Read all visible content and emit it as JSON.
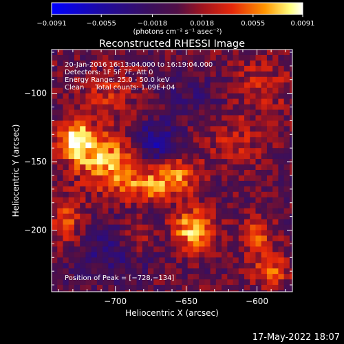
{
  "chart_data": {
    "type": "heatmap",
    "title": "Reconstructed RHESSI Image",
    "xlabel": "Heliocentric X (arcsec)",
    "ylabel": "Heliocentric Y (arcsec)",
    "xlim": [
      -745,
      -575
    ],
    "ylim": [
      -245,
      -68
    ],
    "x_ticks": [
      -700,
      -650,
      -600
    ],
    "x_tick_labels": [
      "−700",
      "−650",
      "−600"
    ],
    "y_ticks": [
      -100,
      -150,
      -200
    ],
    "y_tick_labels": [
      "−100",
      "−150",
      "−200"
    ],
    "colorbar": {
      "range": [
        -0.0091,
        0.0091
      ],
      "ticks": [
        -0.0091,
        -0.0055,
        -0.0018,
        0.0018,
        0.0055,
        0.0091
      ],
      "tick_labels": [
        "−0.0091",
        "−0.0055",
        "−0.0018",
        "0.0018",
        "0.0055",
        "0.0091"
      ],
      "unit_text": "(photons cm⁻² s⁻¹ asec⁻²)"
    },
    "annotations": [
      "20-Jan-2016 16:13:04.000 to 16:19:04.000",
      "Detectors: 1F 5F 7F, Att 0",
      "Energy Range: 25.0 - 50.0 keV",
      "Clean     Total counts: 1.09E+04"
    ],
    "peak_label": "Position of Peak = [−728,−134]",
    "peak_position": [
      -728,
      -134
    ],
    "pixel_size_arcsec": 4,
    "sources": [
      {
        "x": -728,
        "y": -134,
        "rx": 9,
        "ry": 10,
        "amp": 0.0091
      },
      {
        "x": -705,
        "y": -150,
        "rx": 16,
        "ry": 14,
        "amp": 0.0068
      },
      {
        "x": -675,
        "y": -168,
        "rx": 14,
        "ry": 8,
        "amp": 0.0055
      },
      {
        "x": -655,
        "y": -158,
        "rx": 10,
        "ry": 9,
        "amp": 0.0045
      },
      {
        "x": -645,
        "y": -200,
        "rx": 10,
        "ry": 11,
        "amp": 0.0075
      },
      {
        "x": -685,
        "y": -205,
        "rx": 8,
        "ry": 8,
        "amp": 0.004
      },
      {
        "x": -600,
        "y": -205,
        "rx": 8,
        "ry": 8,
        "amp": 0.005
      },
      {
        "x": -590,
        "y": -230,
        "rx": 10,
        "ry": 8,
        "amp": 0.0045
      },
      {
        "x": -735,
        "y": -195,
        "rx": 9,
        "ry": 12,
        "amp": 0.0045
      },
      {
        "x": -600,
        "y": -95,
        "rx": 18,
        "ry": 14,
        "amp": 0.003
      },
      {
        "x": -705,
        "y": -100,
        "rx": 14,
        "ry": 12,
        "amp": 0.003
      },
      {
        "x": -615,
        "y": -135,
        "rx": 14,
        "ry": 14,
        "amp": 0.0028
      }
    ],
    "negative_regions": [
      {
        "x": -672,
        "y": -135,
        "rx": 10,
        "ry": 10,
        "amp": -0.0055
      },
      {
        "x": -705,
        "y": -215,
        "rx": 22,
        "ry": 14,
        "amp": -0.003
      },
      {
        "x": -640,
        "y": -100,
        "rx": 20,
        "ry": 12,
        "amp": -0.002
      }
    ]
  },
  "footer": {
    "timestamp": "17-May-2022 18:07"
  }
}
